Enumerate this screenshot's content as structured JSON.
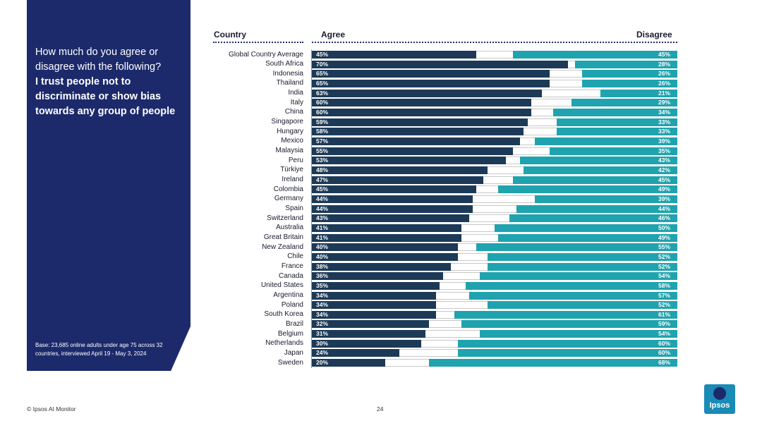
{
  "sidebar": {
    "question_line": "How much do you agree or disagree with the following?",
    "question_bold": "I trust people not to discriminate or show bias towards any group of people",
    "base_note": "Base: 23,685 online adults under age 75 across 32 countries, interviewed April 19 - May 3, 2024"
  },
  "footer": {
    "source": "© Ipsos AI Monitor",
    "page": "24",
    "logo_text": "Ipsos"
  },
  "colors": {
    "agree": "#1c3a57",
    "disagree": "#1fa3ae",
    "panel": "#1c2a6b"
  },
  "chart_data": {
    "type": "bar",
    "orientation": "horizontal-stacked",
    "column_headers": {
      "country": "Country",
      "agree": "Agree",
      "disagree": "Disagree"
    },
    "categories": [
      "Global Country Average",
      "South Africa",
      "Indonesia",
      "Thailand",
      "India",
      "Italy",
      "China",
      "Singapore",
      "Hungary",
      "Mexico",
      "Malaysia",
      "Peru",
      "Türkiye",
      "Ireland",
      "Colombia",
      "Germany",
      "Spain",
      "Switzerland",
      "Australia",
      "Great Britain",
      "New Zealand",
      "Chile",
      "France",
      "Canada",
      "United States",
      "Argentina",
      "Poland",
      "South Korea",
      "Brazil",
      "Belgium",
      "Netherlands",
      "Japan",
      "Sweden"
    ],
    "series": [
      {
        "name": "Agree",
        "values": [
          45,
          70,
          65,
          65,
          63,
          60,
          60,
          59,
          58,
          57,
          55,
          53,
          48,
          47,
          45,
          44,
          44,
          43,
          41,
          41,
          40,
          40,
          38,
          36,
          35,
          34,
          34,
          34,
          32,
          31,
          30,
          24,
          20
        ]
      },
      {
        "name": "Disagree",
        "values": [
          45,
          28,
          26,
          26,
          21,
          29,
          34,
          33,
          33,
          39,
          35,
          43,
          42,
          45,
          49,
          39,
          44,
          46,
          50,
          49,
          55,
          52,
          52,
          54,
          58,
          57,
          52,
          61,
          59,
          54,
          60,
          60,
          68
        ]
      }
    ],
    "value_suffix": "%",
    "xlim": [
      0,
      100
    ]
  }
}
